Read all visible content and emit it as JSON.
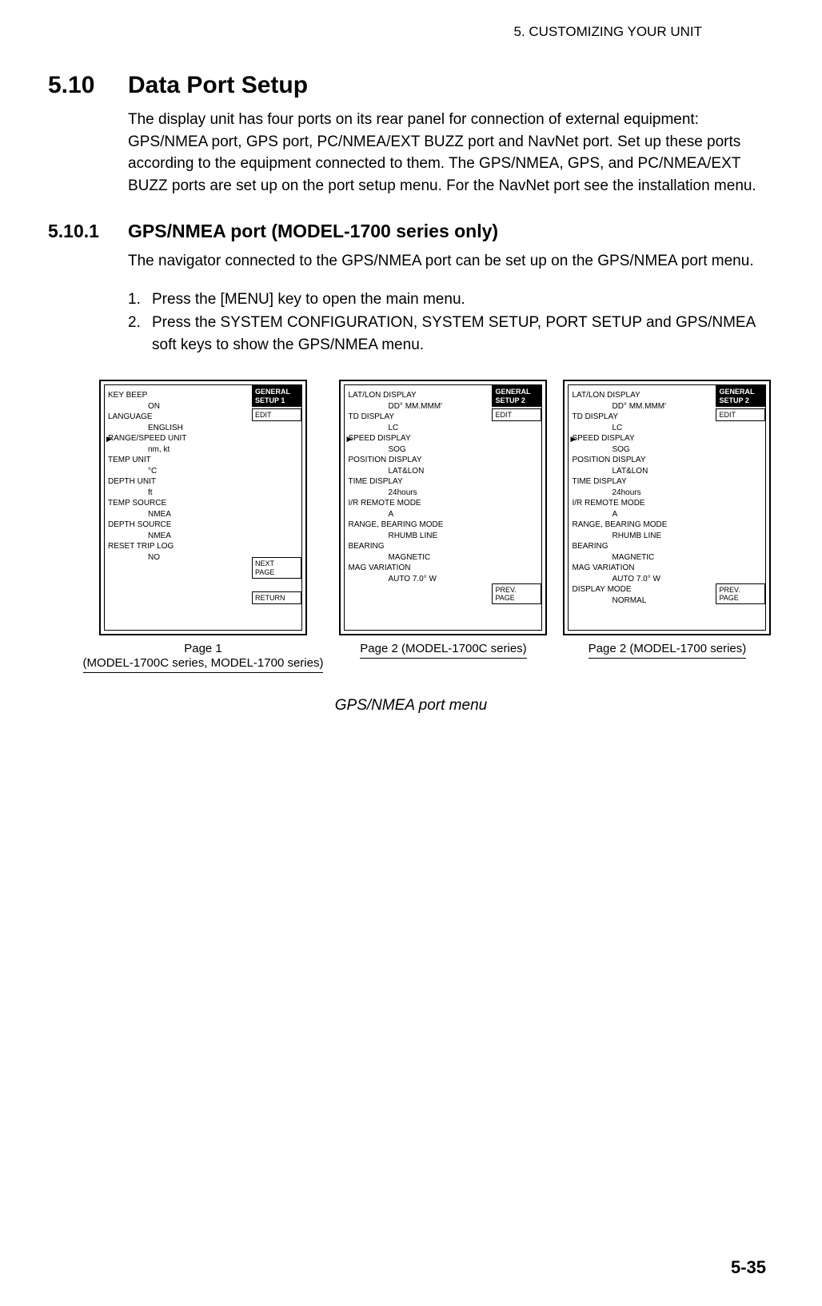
{
  "chapter_header": "5. CUSTOMIZING YOUR UNIT",
  "section": {
    "num": "5.10",
    "title": "Data Port Setup"
  },
  "intro_text": "The display unit has four ports on its rear panel for connection of external equipment: GPS/NMEA port, GPS port, PC/NMEA/EXT BUZZ port and NavNet port. Set up these ports according to the equipment connected to them. The GPS/NMEA, GPS, and PC/NMEA/EXT BUZZ ports are set up on the port setup menu. For the NavNet port see the installation menu.",
  "subsection": {
    "num": "5.10.1",
    "title": "GPS/NMEA port (MODEL-1700 series only)"
  },
  "sub_intro": "The navigator connected to the GPS/NMEA port can be set up on the GPS/NMEA port menu.",
  "steps": [
    {
      "n": "1.",
      "t": "Press the [MENU] key to open the main menu."
    },
    {
      "n": "2.",
      "t": "Press the SYSTEM CONFIGURATION, SYSTEM SETUP, PORT SETUP and GPS/NMEA soft keys to show the GPS/NMEA menu."
    }
  ],
  "panels": [
    {
      "header": "GENERAL\nSETUP 1",
      "rows": [
        {
          "l": "KEY BEEP",
          "v": "ON"
        },
        {
          "l": "LANGUAGE",
          "v": "ENGLISH"
        },
        {
          "l": "RANGE/SPEED UNIT",
          "v": "nm, kt",
          "cursor": true
        },
        {
          "l": "TEMP UNIT",
          "v": "°C"
        },
        {
          "l": "DEPTH UNIT",
          "v": "ft"
        },
        {
          "l": "TEMP SOURCE",
          "v": "NMEA"
        },
        {
          "l": "DEPTH SOURCE",
          "v": "NMEA"
        },
        {
          "l": "RESET TRIP LOG",
          "v": "NO"
        }
      ],
      "softkeys_top": [
        "EDIT"
      ],
      "softkeys_bottom": [
        "NEXT\nPAGE",
        "RETURN"
      ],
      "caption": "Page 1\n(MODEL-1700C series, MODEL-1700 series)"
    },
    {
      "header": "GENERAL\nSETUP 2",
      "rows": [
        {
          "l": "LAT/LON DISPLAY",
          "v": "DD° MM.MMM'"
        },
        {
          "l": "TD DISPLAY",
          "v": "LC"
        },
        {
          "l": "SPEED DISPLAY",
          "v": "SOG",
          "cursor": true
        },
        {
          "l": "POSITION DISPLAY",
          "v": "LAT&LON"
        },
        {
          "l": "TIME DISPLAY",
          "v": "24hours"
        },
        {
          "l": "I/R REMOTE MODE",
          "v": "A"
        },
        {
          "l": "RANGE, BEARING MODE",
          "v": "RHUMB LINE"
        },
        {
          "l": "BEARING",
          "v": "MAGNETIC"
        },
        {
          "l": "MAG VARIATION",
          "v": "AUTO 7.0° W"
        }
      ],
      "softkeys_top": [
        "EDIT"
      ],
      "softkeys_bottom": [
        "PREV.\nPAGE"
      ],
      "caption": "Page 2 (MODEL-1700C series)"
    },
    {
      "header": "GENERAL\nSETUP 2",
      "rows": [
        {
          "l": "LAT/LON DISPLAY",
          "v": "DD° MM.MMM'"
        },
        {
          "l": "TD DISPLAY",
          "v": "LC"
        },
        {
          "l": "SPEED DISPLAY",
          "v": "SOG",
          "cursor": true
        },
        {
          "l": "POSITION DISPLAY",
          "v": "LAT&LON"
        },
        {
          "l": "TIME DISPLAY",
          "v": "24hours"
        },
        {
          "l": "I/R REMOTE MODE",
          "v": "A"
        },
        {
          "l": "RANGE, BEARING MODE",
          "v": "RHUMB LINE"
        },
        {
          "l": "BEARING",
          "v": "MAGNETIC"
        },
        {
          "l": "MAG VARIATION",
          "v": "AUTO 7.0° W"
        },
        {
          "l": "DISPLAY MODE",
          "v": "NORMAL"
        }
      ],
      "softkeys_top": [
        "EDIT"
      ],
      "softkeys_bottom": [
        "PREV.\nPAGE"
      ],
      "caption": "Page 2 (MODEL-1700 series)"
    }
  ],
  "figure_caption": "GPS/NMEA port menu",
  "page_number": "5-35",
  "colors": {
    "bg": "#ffffff",
    "text": "#000000",
    "border": "#000000"
  },
  "fonts": {
    "heading_size_pt": 22,
    "body_size_pt": 14,
    "menu_size_pt": 7
  }
}
